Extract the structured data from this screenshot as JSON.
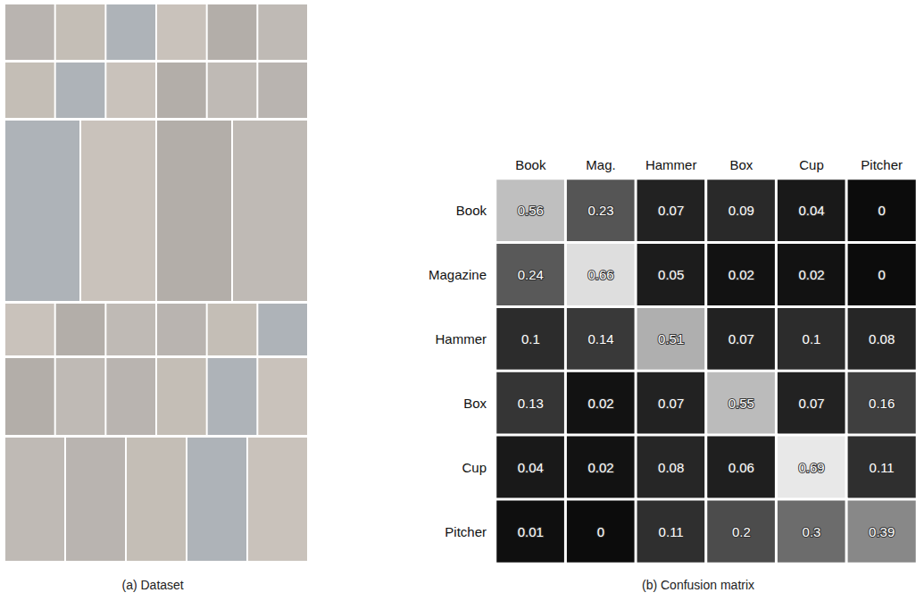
{
  "chart_data": {
    "type": "heatmap",
    "x_categories": [
      "Book",
      "Mag.",
      "Hammer",
      "Box",
      "Cup",
      "Pitcher"
    ],
    "y_categories": [
      "Book",
      "Magazine",
      "Hammer",
      "Box",
      "Cup",
      "Pitcher"
    ],
    "cells": [
      [
        0.56,
        0.23,
        0.07,
        0.09,
        0.04,
        0
      ],
      [
        0.24,
        0.66,
        0.05,
        0.02,
        0.02,
        0
      ],
      [
        0.1,
        0.14,
        0.51,
        0.07,
        0.1,
        0.08
      ],
      [
        0.13,
        0.02,
        0.07,
        0.55,
        0.07,
        0.16
      ],
      [
        0.04,
        0.02,
        0.08,
        0.06,
        0.69,
        0.11
      ],
      [
        0.01,
        0,
        0.11,
        0.2,
        0.3,
        0.39
      ]
    ],
    "data_labels": true,
    "color": "gray",
    "annotations": [
      "(a) Dataset",
      "(b) Confusion matrix"
    ]
  }
}
